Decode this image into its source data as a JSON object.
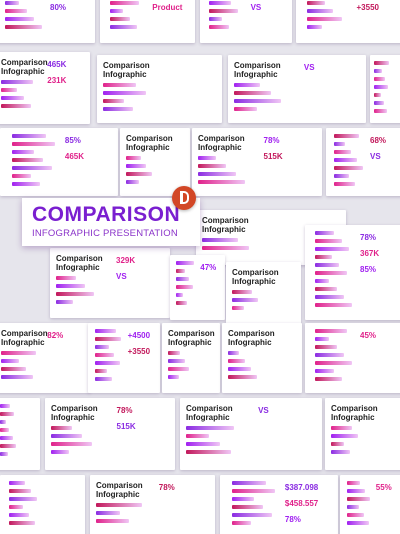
{
  "banner": {
    "title": "COMPARISON",
    "subtitle": "INFOGRAPHIC PRESENTATION"
  },
  "slides": [
    {
      "stats": [
        "80%"
      ]
    },
    {
      "stats": [
        "Product"
      ]
    },
    {
      "stats": [
        "VS"
      ]
    },
    {
      "stats": [
        "+3550"
      ]
    },
    {
      "title": "Comparison Infographic",
      "stats": [
        "465K",
        "231K"
      ]
    },
    {
      "title": "Comparison Infographic",
      "stats": []
    },
    {
      "title": "Comparison Infographic",
      "stats": [
        "VS"
      ]
    },
    {
      "stats": []
    },
    {
      "stats": [
        "85%",
        "465K"
      ]
    },
    {
      "title": "Comparison Infographic",
      "stats": []
    },
    {
      "title": "Comparison Infographic",
      "stats": [
        "78%",
        "515K"
      ]
    },
    {
      "stats": [
        "68%",
        "VS"
      ]
    },
    {
      "title": "Comparison Infographic",
      "stats": []
    },
    {
      "title": "Comparison Infographic",
      "stats": [
        "329K",
        "VS"
      ]
    },
    {
      "stats": [
        "47%"
      ]
    },
    {
      "title": "Comparison Infographic",
      "stats": []
    },
    {
      "stats": [
        "78%",
        "367K",
        "85%"
      ]
    },
    {
      "title": "Comparison Infographic",
      "stats": [
        "82%"
      ]
    },
    {
      "stats": [
        "+4500",
        "+3550"
      ]
    },
    {
      "title": "Comparison Infographic",
      "stats": []
    },
    {
      "title": "Comparison Infographic",
      "stats": []
    },
    {
      "stats": [
        "45%"
      ]
    },
    {
      "stats": []
    },
    {
      "title": "Comparison Infographic",
      "stats": [
        "78%",
        "515K"
      ]
    },
    {
      "title": "Comparison Infographic",
      "stats": [
        "VS"
      ]
    },
    {
      "title": "Comparison Infographic",
      "stats": []
    },
    {
      "stats": []
    },
    {
      "title": "Comparison Infographic",
      "stats": [
        "78%"
      ]
    },
    {
      "stats": [
        "$387.098",
        "$458.557",
        "78%"
      ]
    },
    {
      "stats": [
        "55%"
      ]
    }
  ]
}
